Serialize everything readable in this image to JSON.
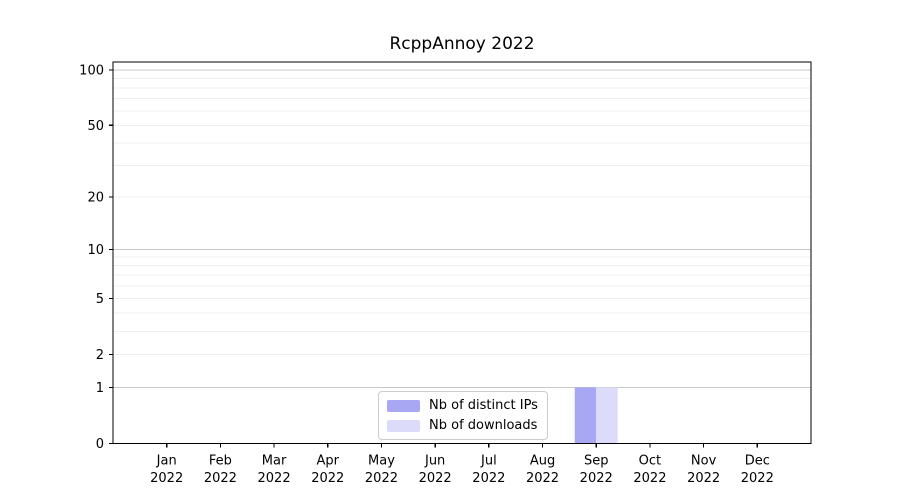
{
  "chart_data": {
    "type": "bar",
    "title": "RcppAnnoy 2022",
    "xlabel": "",
    "ylabel": "",
    "categories": [
      "Jan 2022",
      "Feb 2022",
      "Mar 2022",
      "Apr 2022",
      "May 2022",
      "Jun 2022",
      "Jul 2022",
      "Aug 2022",
      "Sep 2022",
      "Oct 2022",
      "Nov 2022",
      "Dec 2022"
    ],
    "series": [
      {
        "name": "Nb of distinct IPs",
        "color": "#a7a7f3",
        "values": [
          0,
          0,
          0,
          0,
          0,
          0,
          0,
          0,
          1,
          0,
          0,
          0
        ]
      },
      {
        "name": "Nb of downloads",
        "color": "#dcdcfa",
        "values": [
          0,
          0,
          0,
          0,
          0,
          0,
          0,
          0,
          1,
          0,
          0,
          0
        ]
      }
    ],
    "yscale": "log1p",
    "ylim": [
      0,
      111
    ],
    "yticks": [
      0,
      1,
      2,
      5,
      10,
      20,
      50,
      100
    ],
    "minor_gridlines": [
      2,
      3,
      4,
      5,
      6,
      7,
      8,
      9,
      20,
      30,
      40,
      50,
      60,
      70,
      80,
      90
    ],
    "major_gridlines": [
      1,
      10,
      100
    ],
    "grid": {
      "major_color": "#c9c9c9",
      "minor_color": "#efefef",
      "orientation": "horizontal"
    },
    "axis_color": "#000000",
    "legend": {
      "position": "bottom-center",
      "border_color": "#cccccc",
      "background": "#ffffff"
    }
  }
}
